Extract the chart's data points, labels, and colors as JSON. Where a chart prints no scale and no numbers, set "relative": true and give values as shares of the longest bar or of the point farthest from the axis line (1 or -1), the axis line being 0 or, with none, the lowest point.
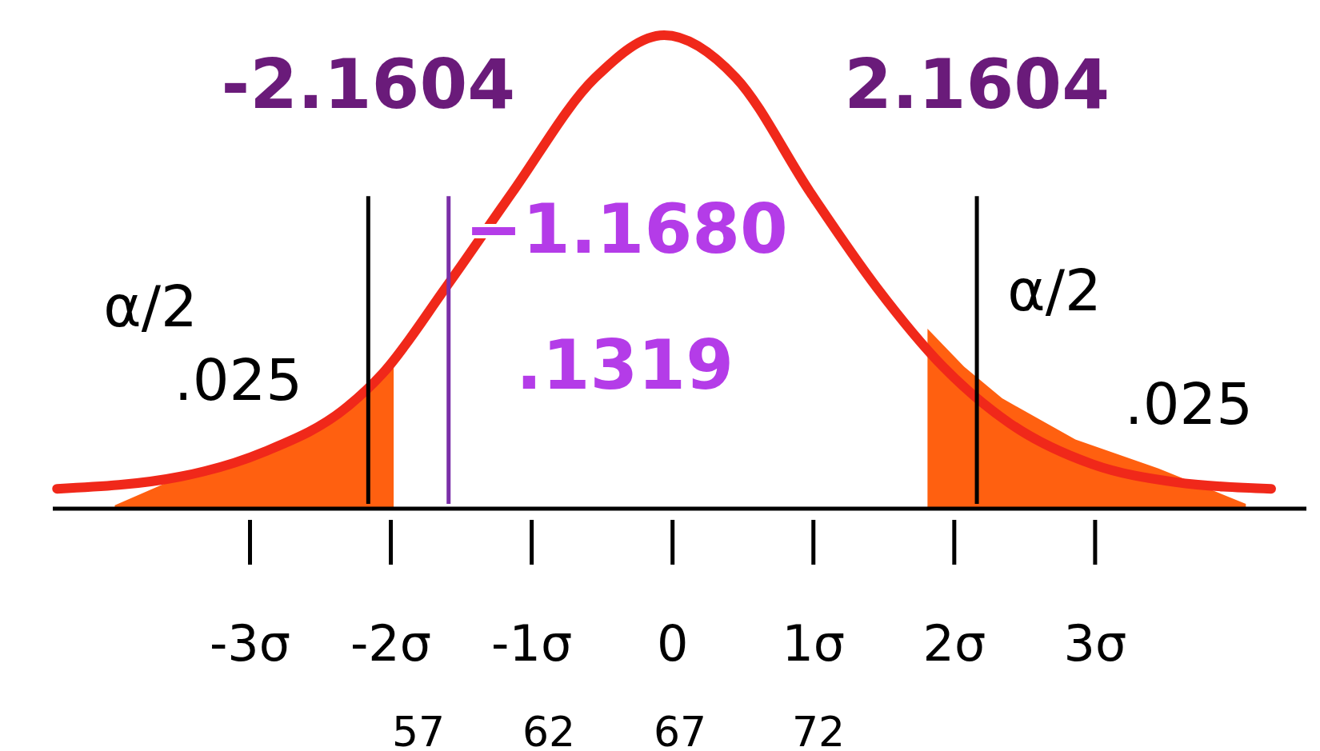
{
  "chart_data": {
    "type": "line",
    "relative": true,
    "xlim": [
      -4.4,
      4.5
    ],
    "xticks": [
      {
        "value": -3,
        "label": "-3σ"
      },
      {
        "value": -2,
        "label": "-2σ"
      },
      {
        "value": -1,
        "label": "-1σ"
      },
      {
        "value": 0,
        "label": "0"
      },
      {
        "value": 1,
        "label": "1σ"
      },
      {
        "value": 2,
        "label": "2σ"
      },
      {
        "value": 3,
        "label": "3σ"
      }
    ],
    "series": [
      {
        "type": "area",
        "color": "#ff6010",
        "x": [
          -3.96,
          -3.49,
          -2.9,
          -2.31,
          -1.98
        ],
        "values": [
          0.007,
          0.068,
          0.12,
          0.215,
          0.3
        ]
      },
      {
        "type": "area",
        "color": "#ff6010",
        "x": [
          1.81,
          2.07,
          2.34,
          2.86,
          3.45,
          4.07
        ],
        "values": [
          0.38,
          0.3,
          0.233,
          0.146,
          0.085,
          0.01
        ]
      },
      {
        "type": "line",
        "color": "#f0281a",
        "x": [
          -4.37,
          -3.49,
          -2.9,
          -2.31,
          -2.06,
          -1.61,
          -1.14,
          -0.55,
          -0.06,
          0.45,
          0.98,
          1.45,
          1.92,
          2.39,
          2.98,
          3.57,
          4.25
        ],
        "values": [
          0.042,
          0.068,
          0.12,
          0.215,
          0.285,
          0.467,
          0.667,
          0.91,
          1.0,
          0.91,
          0.667,
          0.467,
          0.3,
          0.181,
          0.094,
          0.056,
          0.042
        ]
      }
    ],
    "ref_lines": [
      {
        "axis": "x",
        "value": -2.1604,
        "label": "-2.1604",
        "color": "#000000"
      },
      {
        "axis": "x",
        "value": 2.1604,
        "label": "2.1604",
        "color": "#000000"
      },
      {
        "axis": "x",
        "value": -1.59,
        "color": "#7b2fa8"
      }
    ],
    "annotations": [
      "α/2",
      ".025",
      "α/2",
      ".025",
      "−1.1680",
      ".1319",
      "57",
      "62",
      "67",
      "72"
    ]
  }
}
